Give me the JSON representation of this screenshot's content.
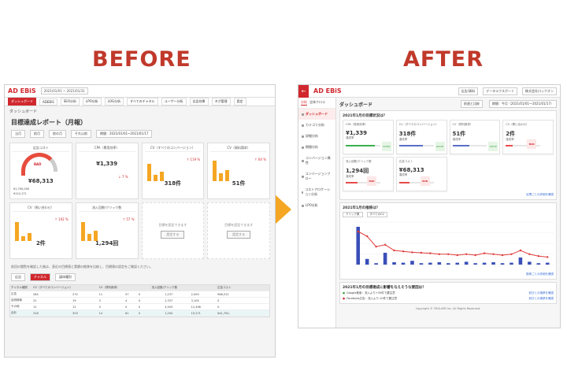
{
  "headings": {
    "before": "BEFORE",
    "after": "AFTER"
  },
  "before": {
    "logo": "AD EBiS",
    "date_range": "2021/01/01 ~ 2021/01/31",
    "nav": [
      "ダッシュボード",
      "ADEBiS",
      "SEO分析",
      "LPO分析",
      "LOG分析",
      "すべてのチャネル",
      "ユーザー分析",
      "広告効果",
      "タグ管理",
      "設定"
    ],
    "crumb": "ダッシュボード",
    "title": "目標達成レポート（月報）",
    "filters": [
      "当月",
      "前月",
      "前の月",
      "それ以前",
      "期間：2021/01/01~2021/01/17"
    ],
    "cards": [
      {
        "title": "広告コスト",
        "label": "BAD",
        "value": "¥68,313",
        "sub1": "¥1,700,000",
        "sub2": "¥114,171"
      },
      {
        "title": "CPA（費用効率）",
        "value": "¥1,339",
        "delta": "↓ 7 %"
      },
      {
        "title": "CV（すべてのコンバージョン）",
        "value": "318件",
        "delta": "↑ 119 %"
      },
      {
        "title": "CV（資料請求）",
        "value": "51件",
        "delta": "↑ 64 %"
      },
      {
        "title": "CV（問い合わせ）",
        "value": "2件",
        "delta": "↑ 102 %"
      },
      {
        "title": "流入回数/クリック数",
        "value": "1,294回",
        "delta": "↑ 57 %"
      },
      {
        "title": "",
        "empty": "目標を設定できます",
        "button": "設定する"
      },
      {
        "title": "",
        "empty": "目標を設定できます",
        "button": "設定する"
      }
    ],
    "note": "前回の閲覧を確認した後は、直近の目標値と実績の推移を比較し、目標値の設定をご確認ください。",
    "table": {
      "tabs": [
        "広告",
        "チャネル",
        "媒体種別"
      ],
      "head": [
        "チャネル種別",
        "CV（すべてのコンバージョン）",
        "CV（資料請求）",
        "流入回数/クリック数",
        "広告コスト"
      ],
      "rows": [
        [
          "広告",
          "284",
          "272",
          "11",
          "57",
          "0",
          "1,237",
          "2,000",
          "968,312"
        ],
        [
          "自然検索",
          "22",
          "19",
          "3",
          "4",
          "0",
          "2,337",
          "3,100",
          "0"
        ],
        [
          "その他",
          "12",
          "12",
          "0",
          "0",
          "0",
          "4,943",
          "12,496",
          "0"
        ],
        [
          "合計",
          "318",
          "303",
          "14",
          "61",
          "0",
          "1,294",
          "19,271",
          "¥41,700,000"
        ]
      ]
    }
  },
  "after": {
    "logo": "AD EBiS",
    "tools": [
      "広告/資料",
      "データエクスポート",
      "株式会社ロックオン"
    ],
    "sidebar_tabs": [
      "分析",
      "全体クロラ"
    ],
    "sidebar": [
      "ダッシュボード",
      "カテゴリ分析",
      "詳細分析",
      "期間分析",
      "コンバージョン属性",
      "コンバージョンフロー",
      "コストアロケーション分析",
      "LPO分析"
    ],
    "page_title": "ダッシュボード",
    "compare": "前週と比較",
    "period": "期間：今月（2021/01/01〜2021/01/17）",
    "section1": "2021年1月の目標状況は？",
    "cards": [
      {
        "title": "CPA（費用効率）",
        "value": "¥1,339",
        "sub": "達成率",
        "badge": "GOOD",
        "state": "good",
        "fill": 0.85,
        "color": "#3bb04a"
      },
      {
        "title": "CV（すべてのコンバージョン）",
        "value": "318件",
        "sub": "達成率",
        "badge": "GOOD",
        "state": "good",
        "fill": 0.7,
        "color": "#5b6ec7"
      },
      {
        "title": "CV（資料請求）",
        "value": "51件",
        "sub": "達成率",
        "badge": "GOOD",
        "state": "good",
        "fill": 0.5,
        "color": "#5b6ec7"
      },
      {
        "title": "CV（問い合わせ）",
        "value": "2件",
        "sub": "達成率",
        "badge": "BAD",
        "state": "bad",
        "fill": 0.2,
        "color": "#e84b4b"
      },
      {
        "title": "流入回数/クリック数",
        "value": "1,294回",
        "sub": "達成率",
        "badge": "BAD",
        "state": "bad",
        "fill": 0.35,
        "color": "#e84b4b"
      },
      {
        "title": "広告コスト",
        "value": "¥68,313",
        "sub": "達成率",
        "badge": "BAD",
        "state": "bad",
        "fill": 0.3,
        "color": "#e84b4b"
      }
    ],
    "link1": "目標ごとの詳細を確認",
    "section2": "2021年1月の推移は？",
    "legend": [
      "クリック数",
      "すべてのCV"
    ],
    "chart_data": {
      "type": "bar",
      "bars": [
        80,
        12,
        3,
        25,
        5,
        4,
        8,
        3,
        4,
        5,
        3,
        4,
        6,
        3,
        4,
        5,
        3,
        4,
        15,
        6,
        3,
        4
      ],
      "line": [
        70,
        60,
        38,
        42,
        30,
        28,
        26,
        25,
        24,
        22,
        22,
        20,
        22,
        20,
        24,
        22,
        20,
        22,
        30,
        22,
        18,
        16
      ]
    },
    "link2": "推移ごとの詳細を確認",
    "section3": "2021年1月の目標達成に影響を与えそうな要因は？",
    "feed": [
      {
        "status": "ok",
        "text": "Google検索：流入より+35件で要注意",
        "link": "前日との推移を確認"
      },
      {
        "status": "ng",
        "text": "Facebook広告：流入より-10件で要注意",
        "link": "前日との推移を確認"
      }
    ],
    "footer": "Copyright © YRGLAYR Inc. All Rights Reserved."
  }
}
